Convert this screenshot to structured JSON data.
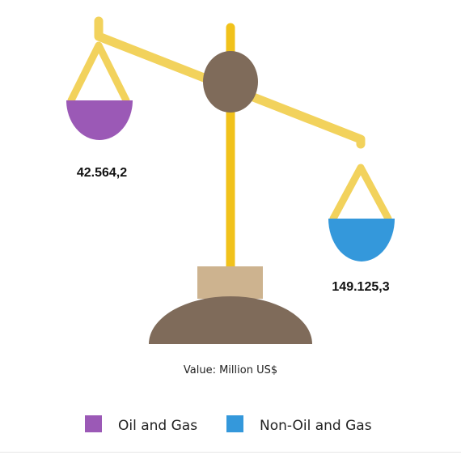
{
  "chart_data": {
    "type": "balance-scale",
    "unit_caption": "Value: Million US$",
    "series": [
      {
        "name": "Oil and Gas",
        "value": 42564.2,
        "display": "42.564,2",
        "color": "#9b59b6"
      },
      {
        "name": "Non-Oil and Gas",
        "value": 149125.3,
        "display": "149.125,3",
        "color": "#3498db"
      }
    ],
    "legend_position": "bottom"
  },
  "colors": {
    "beam": "#f2d25c",
    "post": "#f1c21b",
    "pivot": "#7f6b5a",
    "base": "#7f6b5a",
    "block": "#cdb38f"
  }
}
